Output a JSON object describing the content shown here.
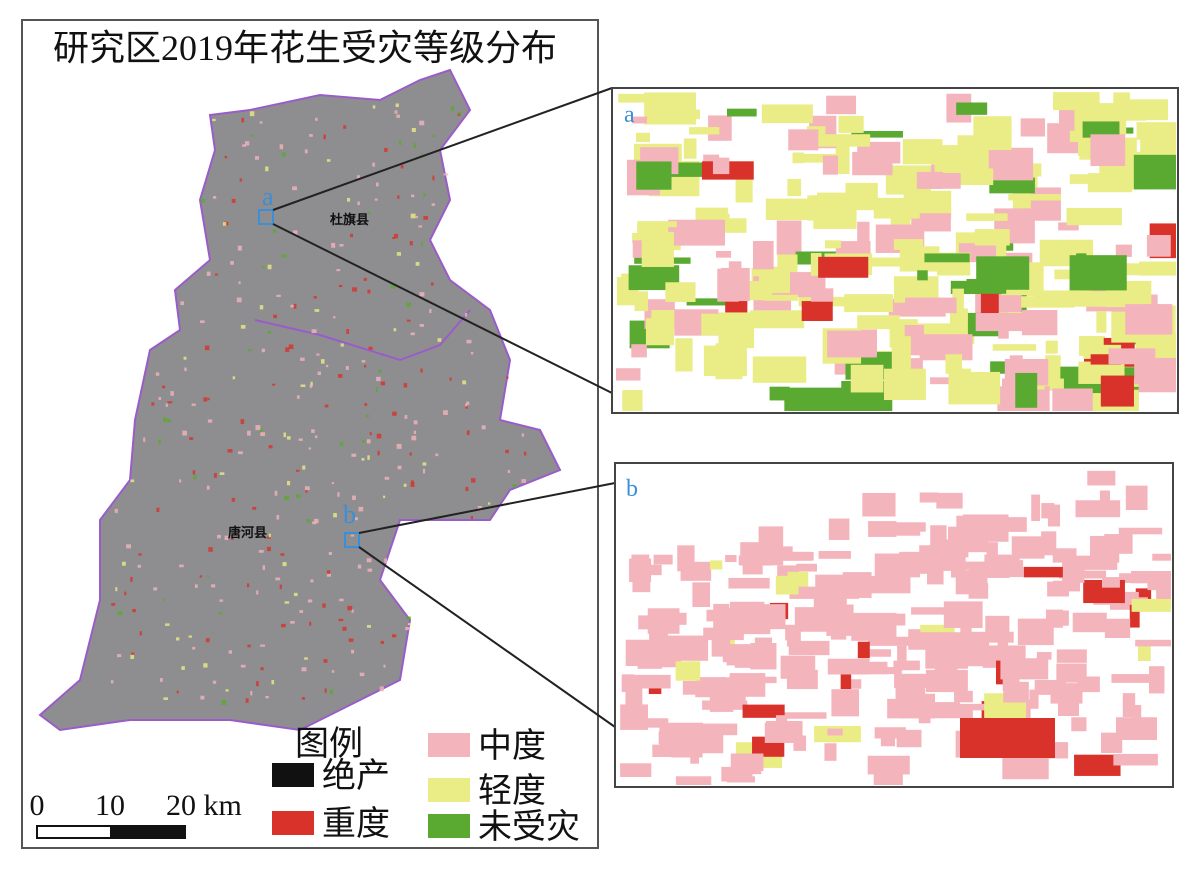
{
  "title": "研究区2019年花生受灾等级分布",
  "counties": [
    {
      "label": "杜旗县"
    },
    {
      "label": "唐河县"
    }
  ],
  "insets": [
    {
      "label": "a"
    },
    {
      "label": "b"
    }
  ],
  "legend": {
    "title": "图例",
    "items": [
      {
        "label": "绝产",
        "color": "#111111"
      },
      {
        "label": "重度",
        "color": "#d8322a"
      },
      {
        "label": "中度",
        "color": "#f4b4bc"
      },
      {
        "label": "轻度",
        "color": "#eaec86"
      },
      {
        "label": "未受灾",
        "color": "#5aaa32"
      }
    ]
  },
  "scale_bar": {
    "labels": [
      "0",
      "10",
      "20 km"
    ]
  }
}
